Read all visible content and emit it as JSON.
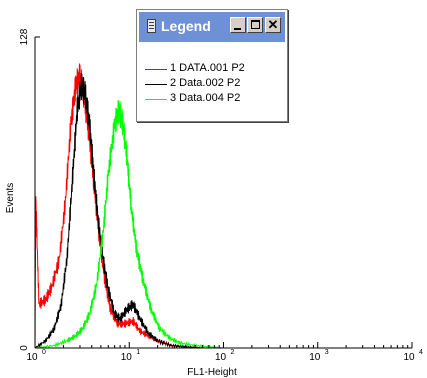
{
  "chart_data": {
    "type": "line",
    "xlabel": "FL1-Height",
    "ylabel": "Events",
    "x_scale": "log",
    "xlim": [
      1,
      10000
    ],
    "ylim": [
      0,
      128
    ],
    "x_ticks": [
      {
        "base": "10",
        "exp": "0"
      },
      {
        "base": "10",
        "exp": "1"
      },
      {
        "base": "10",
        "exp": "2"
      },
      {
        "base": "10",
        "exp": "3"
      },
      {
        "base": "10",
        "exp": "4"
      }
    ],
    "y_ticks": [
      "0",
      "128"
    ],
    "grid": false,
    "series": [
      {
        "name": "1 DATA.001  P2",
        "color": "#ff0000",
        "x": [
          1.0,
          1.02,
          1.1,
          1.3,
          1.5,
          1.8,
          2.1,
          2.4,
          2.7,
          3.0,
          3.3,
          3.7,
          4.2,
          4.8,
          5.5,
          6.3,
          7.5,
          9.0,
          11,
          13,
          16,
          20,
          28,
          40,
          60,
          100
        ],
        "values": [
          0,
          62,
          18,
          20,
          25,
          36,
          60,
          92,
          108,
          112,
          104,
          90,
          68,
          46,
          28,
          16,
          10,
          10,
          11,
          7,
          5,
          3,
          1,
          0.5,
          0,
          0
        ]
      },
      {
        "name": "2 Data.002  P2",
        "color": "#000000",
        "x": [
          1.0,
          1.3,
          1.6,
          1.9,
          2.2,
          2.5,
          2.8,
          3.1,
          3.4,
          3.8,
          4.2,
          4.7,
          5.3,
          6.0,
          7.0,
          8.0,
          9.5,
          11,
          13,
          16,
          20,
          28,
          40,
          60,
          100
        ],
        "values": [
          0,
          3,
          8,
          18,
          38,
          70,
          98,
          108,
          105,
          92,
          72,
          52,
          36,
          24,
          14,
          12,
          16,
          18,
          12,
          6,
          3,
          1,
          0.5,
          0,
          0
        ]
      },
      {
        "name": "3 Data.004  P2",
        "color": "#00ff00",
        "x": [
          1.0,
          1.6,
          2.2,
          2.7,
          3.2,
          3.8,
          4.5,
          5.3,
          6.0,
          7.0,
          7.8,
          8.6,
          9.5,
          10.5,
          12,
          14,
          17,
          21,
          27,
          35,
          50,
          70,
          100,
          150
        ],
        "values": [
          0,
          1,
          3,
          5,
          8,
          14,
          26,
          48,
          72,
          92,
          98,
          92,
          78,
          58,
          40,
          28,
          16,
          8,
          4,
          2,
          1,
          0.5,
          0,
          0
        ]
      }
    ]
  },
  "legend": {
    "title": "Legend",
    "entries": [
      {
        "label": "1 DATA.001  P2",
        "color": "#ff0000"
      },
      {
        "label": "2 Data.002  P2",
        "color": "#000000"
      },
      {
        "label": "3 Data.004  P2",
        "color": "#00ff00"
      }
    ]
  }
}
